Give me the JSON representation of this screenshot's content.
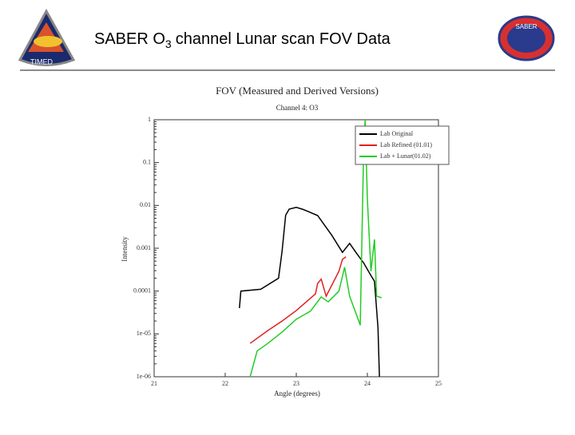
{
  "header": {
    "title_main": "SABER O",
    "title_subscript": "3",
    "title_rest": "channel Lunar scan FOV Data",
    "left_logo_label": "TIMED",
    "right_logo_label": "SABER"
  },
  "chart_data": {
    "type": "line",
    "title": "FOV (Measured and Derived Versions)",
    "subtitle": "Channel 4: O3",
    "x_label": "Angle (degrees)",
    "y_label": "Intensity",
    "xlim": [
      21,
      25
    ],
    "xticks": [
      21,
      22,
      23,
      24,
      25
    ],
    "ylim": [
      1e-06,
      1
    ],
    "y_log": true,
    "yticks": [
      1,
      0.1,
      0.01,
      0.001,
      0.0001,
      {
        "value": 1e-05,
        "label": "1e-05"
      },
      {
        "value": 1e-06,
        "label": "1e-06"
      }
    ],
    "legend": "upper right",
    "series": [
      {
        "name": "Lab Original",
        "color": "#000000",
        "x": [
          22.2,
          22.22,
          22.5,
          22.75,
          22.8,
          22.85,
          22.9,
          23.0,
          23.1,
          23.3,
          23.5,
          23.65,
          23.75,
          23.85,
          23.95,
          24.05,
          24.1,
          24.15,
          24.17
        ],
        "values": [
          4e-05,
          0.0001,
          0.00011,
          0.0002,
          0.00085,
          0.0059,
          0.0082,
          0.009,
          0.008,
          0.0058,
          0.002,
          0.0008,
          0.0013,
          0.00075,
          0.00045,
          0.00023,
          0.00017,
          1.4e-05,
          1e-06
        ]
      },
      {
        "name": "Lab Refined (01.01)",
        "color": "#e02020",
        "x": [
          22.35,
          22.6,
          22.8,
          23.0,
          23.27,
          23.3,
          23.35,
          23.42,
          23.6,
          23.65,
          23.7
        ],
        "values": [
          6e-06,
          1.2e-05,
          2e-05,
          3.5e-05,
          8.6e-05,
          0.00015,
          0.00019,
          7.6e-05,
          0.00029,
          0.00055,
          0.00063
        ]
      },
      {
        "name": "Lab + Lunar(01.02)",
        "color": "#22cc22",
        "x": [
          22.35,
          22.4,
          22.45,
          22.6,
          22.8,
          23.0,
          23.2,
          23.35,
          23.45,
          23.6,
          23.68,
          23.75,
          23.85,
          23.9,
          23.95,
          23.97,
          24.0,
          24.05,
          24.1,
          24.13,
          24.2
        ],
        "values": [
          1e-06,
          2e-06,
          4e-06,
          6e-06,
          1.1e-05,
          2.2e-05,
          3.4e-05,
          7.3e-05,
          5.6e-05,
          0.0001,
          0.00036,
          7.6e-05,
          2.7e-05,
          1.6e-05,
          0.28,
          1,
          0.014,
          0.00029,
          0.0016,
          7.6e-05,
          7e-05
        ]
      }
    ]
  }
}
